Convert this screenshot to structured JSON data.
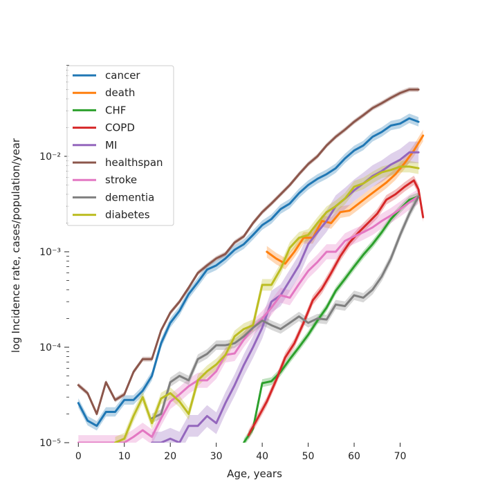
{
  "chart_data": {
    "type": "line",
    "title": "",
    "xlabel": "Age, years",
    "ylabel": "log Incidence rate, cases/population/year",
    "xlim": [
      -2,
      77
    ],
    "ylim": [
      1e-05,
      0.1
    ],
    "yscale": "log",
    "x_ticks": [
      0,
      10,
      20,
      30,
      40,
      50,
      60,
      70
    ],
    "y_ticks": [
      {
        "value": 1e-05,
        "label": "10⁻⁵"
      },
      {
        "value": 0.0001,
        "label": "10⁻⁴"
      },
      {
        "value": 0.001,
        "label": "10⁻³"
      },
      {
        "value": 0.01,
        "label": "10⁻²"
      }
    ],
    "grid": false,
    "legend_position": "top-left",
    "series": [
      {
        "name": "cancer",
        "color": "#1f77b4",
        "x": [
          0,
          2,
          4,
          6,
          8,
          10,
          12,
          14,
          16,
          18,
          20,
          22,
          24,
          26,
          28,
          30,
          32,
          34,
          36,
          38,
          40,
          42,
          44,
          46,
          48,
          50,
          52,
          54,
          56,
          58,
          60,
          62,
          64,
          66,
          68,
          70,
          72,
          74
        ],
        "y": [
          2.6e-05,
          1.7e-05,
          1.5e-05,
          2.1e-05,
          2.1e-05,
          2.8e-05,
          2.8e-05,
          3.5e-05,
          5e-05,
          0.00011,
          0.00018,
          0.00024,
          0.00036,
          0.00048,
          0.00065,
          0.00072,
          0.00085,
          0.00105,
          0.0012,
          0.0015,
          0.0019,
          0.0022,
          0.0028,
          0.0032,
          0.0041,
          0.005,
          0.0058,
          0.0065,
          0.0075,
          0.0095,
          0.0115,
          0.013,
          0.016,
          0.018,
          0.021,
          0.022,
          0.025,
          0.023
        ],
        "band": 0.12
      },
      {
        "name": "death",
        "color": "#ff7f0e",
        "x": [
          41,
          43,
          45,
          47,
          49,
          51,
          53,
          55,
          57,
          59,
          61,
          63,
          65,
          67,
          69,
          71,
          73,
          75
        ],
        "y": [
          0.001,
          0.00085,
          0.00075,
          0.001,
          0.0014,
          0.0014,
          0.0021,
          0.002,
          0.0026,
          0.0027,
          0.0032,
          0.0038,
          0.0045,
          0.0053,
          0.0065,
          0.0085,
          0.0115,
          0.0165
        ],
        "band": 0.15
      },
      {
        "name": "CHF",
        "color": "#2ca02c",
        "x": [
          36,
          38,
          40,
          42,
          44,
          46,
          48,
          50,
          52,
          54,
          56,
          58,
          60,
          62,
          64,
          66,
          68,
          70,
          72,
          74
        ],
        "y": [
          1e-05,
          1.4e-05,
          4.2e-05,
          4.4e-05,
          5.5e-05,
          7.5e-05,
          0.0001,
          0.000135,
          0.00019,
          0.00026,
          0.00039,
          0.00052,
          0.0007,
          0.00093,
          0.0012,
          0.0016,
          0.0022,
          0.0028,
          0.0035,
          0.0038
        ],
        "band": 0.1
      },
      {
        "name": "COPD",
        "color": "#d62728",
        "x": [
          37,
          39,
          41,
          43,
          45,
          47,
          49,
          51,
          53,
          55,
          57,
          59,
          61,
          63,
          65,
          67,
          69,
          71,
          73,
          74,
          75
        ],
        "y": [
          1.2e-05,
          1.8e-05,
          2.7e-05,
          4.5e-05,
          7.8e-05,
          0.00011,
          0.00018,
          0.00031,
          0.00041,
          0.0006,
          0.0009,
          0.00125,
          0.0016,
          0.002,
          0.0025,
          0.0035,
          0.004,
          0.0048,
          0.0056,
          0.0045,
          0.0023
        ],
        "band": 0.12
      },
      {
        "name": "MI",
        "color": "#9467bd",
        "x": [
          16,
          18,
          20,
          22,
          24,
          26,
          28,
          30,
          32,
          34,
          36,
          38,
          40,
          42,
          44,
          46,
          48,
          50,
          52,
          54,
          56,
          58,
          60,
          62,
          64,
          66,
          68,
          70,
          72,
          74
        ],
        "y": [
          1e-05,
          1e-05,
          1.1e-05,
          1e-05,
          1.5e-05,
          1.5e-05,
          1.9e-05,
          1.6e-05,
          2.6e-05,
          4e-05,
          6.5e-05,
          0.0001,
          0.00016,
          0.0003,
          0.00035,
          0.0005,
          0.00072,
          0.0012,
          0.0016,
          0.0021,
          0.003,
          0.0036,
          0.0044,
          0.0052,
          0.0062,
          0.007,
          0.0082,
          0.0092,
          0.011,
          0.011
        ],
        "band": 0.3
      },
      {
        "name": "healthspan",
        "color": "#8c564b",
        "x": [
          0,
          2,
          4,
          6,
          8,
          10,
          12,
          14,
          16,
          18,
          20,
          22,
          24,
          26,
          28,
          30,
          32,
          34,
          36,
          38,
          40,
          42,
          44,
          46,
          48,
          50,
          52,
          54,
          56,
          58,
          60,
          62,
          64,
          66,
          68,
          70,
          72,
          74
        ],
        "y": [
          4e-05,
          3.3e-05,
          2e-05,
          4.3e-05,
          2.8e-05,
          3.2e-05,
          5.5e-05,
          7.5e-05,
          7.5e-05,
          0.00015,
          0.00023,
          0.0003,
          0.00042,
          0.0006,
          0.00072,
          0.00085,
          0.00095,
          0.00125,
          0.00145,
          0.002,
          0.0026,
          0.0032,
          0.004,
          0.005,
          0.0065,
          0.0083,
          0.01,
          0.013,
          0.016,
          0.019,
          0.023,
          0.027,
          0.032,
          0.036,
          0.041,
          0.046,
          0.05,
          0.05
        ],
        "band": 0.06
      },
      {
        "name": "stroke",
        "color": "#e377c2",
        "x": [
          0,
          4,
          8,
          10,
          12,
          14,
          16,
          18,
          20,
          22,
          24,
          26,
          28,
          30,
          32,
          34,
          36,
          38,
          40,
          42,
          44,
          46,
          48,
          50,
          52,
          54,
          56,
          58,
          60,
          62,
          64,
          66,
          68,
          70,
          72,
          74
        ],
        "y": [
          1e-05,
          1e-05,
          1e-05,
          1e-05,
          1.15e-05,
          1.35e-05,
          1.15e-05,
          1.8e-05,
          2.7e-05,
          3.2e-05,
          3.9e-05,
          4.5e-05,
          4.5e-05,
          5.6e-05,
          8.3e-05,
          8.6e-05,
          0.00012,
          0.00016,
          0.0002,
          0.00026,
          0.00035,
          0.00033,
          0.00046,
          0.00063,
          0.00078,
          0.001,
          0.001,
          0.0013,
          0.00145,
          0.0016,
          0.0018,
          0.0021,
          0.0024,
          0.0028,
          0.0033,
          0.0038
        ],
        "band": 0.2
      },
      {
        "name": "dementia",
        "color": "#7f7f7f",
        "x": [
          16,
          18,
          20,
          22,
          24,
          26,
          28,
          30,
          32,
          34,
          36,
          38,
          40,
          42,
          44,
          46,
          48,
          50,
          52,
          54,
          56,
          58,
          60,
          62,
          64,
          66,
          68,
          70,
          72,
          74
        ],
        "y": [
          1.8e-05,
          2e-05,
          4.3e-05,
          5e-05,
          4.5e-05,
          7.5e-05,
          8.5e-05,
          0.000105,
          0.000105,
          0.00011,
          0.00013,
          0.00016,
          0.00019,
          0.00017,
          0.000155,
          0.00018,
          0.00021,
          0.00018,
          0.0002,
          0.000195,
          0.00028,
          0.00027,
          0.00035,
          0.00033,
          0.0004,
          0.00055,
          0.00085,
          0.0015,
          0.0025,
          0.0038
        ],
        "band": 0.12
      },
      {
        "name": "diabetes",
        "color": "#bcbd22",
        "x": [
          8,
          10,
          12,
          14,
          16,
          18,
          20,
          22,
          24,
          26,
          28,
          30,
          32,
          34,
          36,
          38,
          40,
          42,
          44,
          46,
          48,
          50,
          52,
          54,
          56,
          58,
          60,
          62,
          64,
          66,
          68,
          70,
          72,
          74
        ],
        "y": [
          1e-05,
          1.1e-05,
          1.9e-05,
          3e-05,
          1.6e-05,
          2.9e-05,
          3.3e-05,
          2.7e-05,
          2e-05,
          4.5e-05,
          5.6e-05,
          6.6e-05,
          8.3e-05,
          0.00013,
          0.000155,
          0.00017,
          0.00045,
          0.00045,
          0.00066,
          0.0011,
          0.0014,
          0.0015,
          0.002,
          0.0026,
          0.003,
          0.0036,
          0.0048,
          0.0052,
          0.006,
          0.0068,
          0.0072,
          0.0078,
          0.0078,
          0.0075
        ],
        "band": 0.15
      }
    ]
  }
}
